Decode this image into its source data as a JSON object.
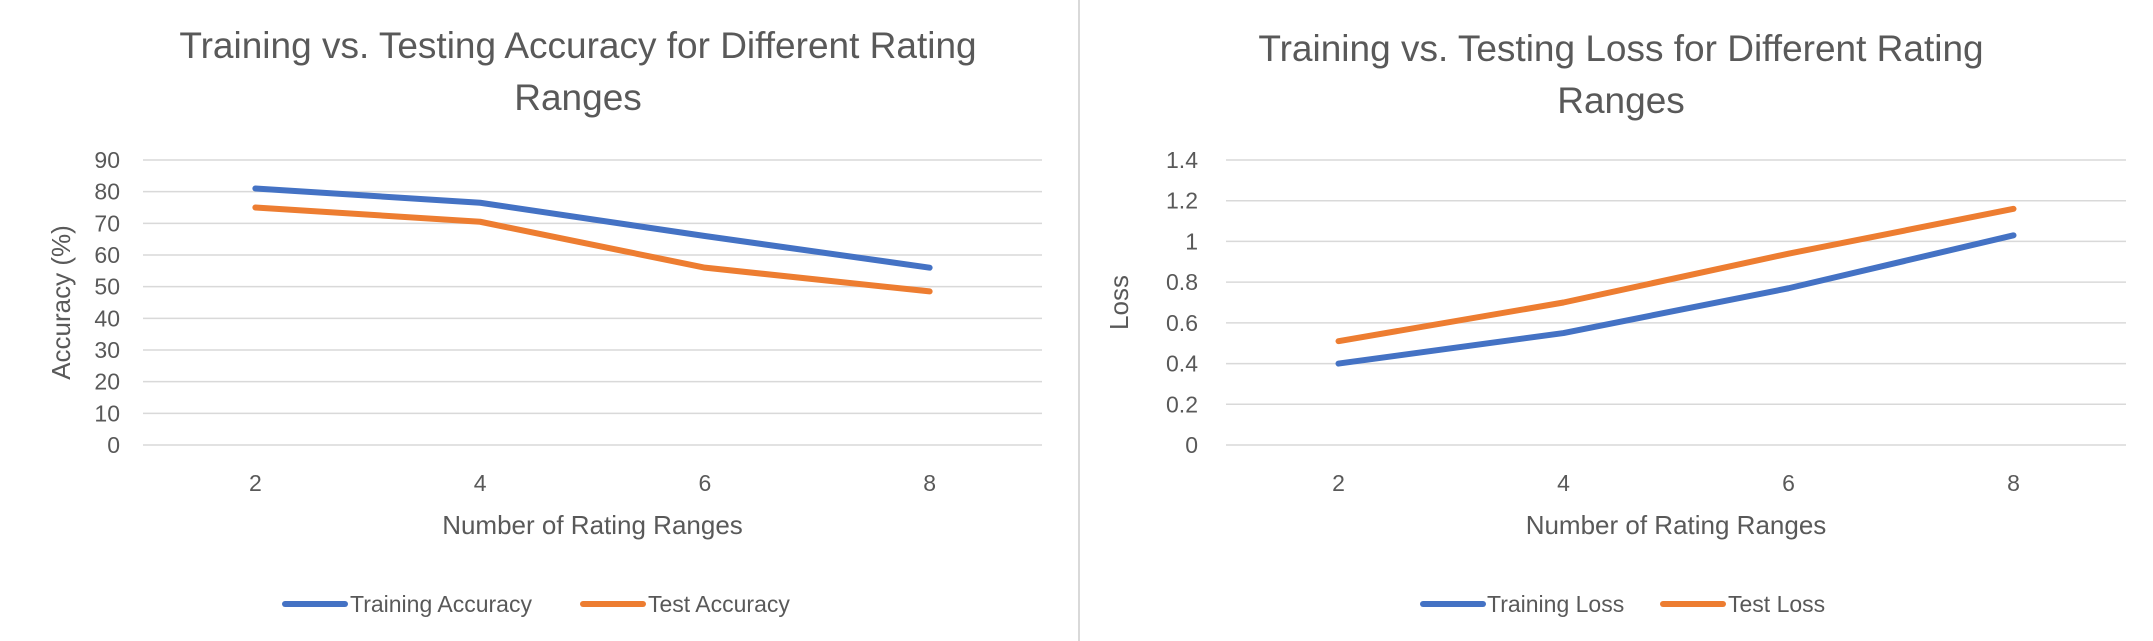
{
  "colors": {
    "training": "#4472c4",
    "test": "#ed7d31",
    "grid": "#d9d9d9",
    "text": "#595959"
  },
  "chart_data": [
    {
      "type": "line",
      "title": "Training vs. Testing Accuracy for Different Rating Ranges",
      "title_lines": [
        "Training vs. Testing Accuracy for Different Rating",
        "Ranges"
      ],
      "xlabel": "Number of Rating Ranges",
      "ylabel": "Accuracy (%)",
      "categories": [
        "2",
        "4",
        "6",
        "8"
      ],
      "ylim": [
        0,
        90
      ],
      "yticks": [
        0,
        10,
        20,
        30,
        40,
        50,
        60,
        70,
        80,
        90
      ],
      "ytick_labels": [
        "0",
        "10",
        "20",
        "30",
        "40",
        "50",
        "60",
        "70",
        "80",
        "90"
      ],
      "grid": true,
      "legend_position": "bottom",
      "series": [
        {
          "name": "Training Accuracy",
          "values": [
            81,
            76.5,
            66,
            56
          ]
        },
        {
          "name": "Test Accuracy",
          "values": [
            75,
            70.5,
            56,
            48.5
          ]
        }
      ]
    },
    {
      "type": "line",
      "title": "Training vs. Testing Loss for Different Rating Ranges",
      "title_lines": [
        "Training vs. Testing Loss for Different Rating",
        "Ranges"
      ],
      "xlabel": "Number of Rating Ranges",
      "ylabel": "Loss",
      "categories": [
        "2",
        "4",
        "6",
        "8"
      ],
      "ylim": [
        0,
        1.4
      ],
      "yticks": [
        0,
        0.2,
        0.4,
        0.6,
        0.8,
        1,
        1.2,
        1.4
      ],
      "ytick_labels": [
        "0",
        "0.2",
        "0.4",
        "0.6",
        "0.8",
        "1",
        "1.2",
        "1.4"
      ],
      "grid": true,
      "legend_position": "bottom",
      "series": [
        {
          "name": "Training Loss",
          "values": [
            0.4,
            0.55,
            0.77,
            1.03
          ]
        },
        {
          "name": "Test Loss",
          "values": [
            0.51,
            0.7,
            0.94,
            1.16
          ]
        }
      ]
    }
  ]
}
